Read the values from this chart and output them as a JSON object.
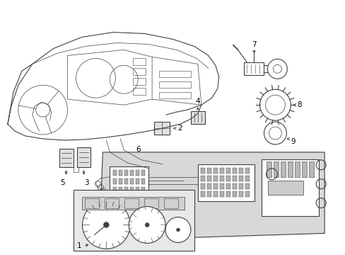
{
  "background_color": "#ffffff",
  "line_color": "#404040",
  "label_color": "#000000",
  "fig_width": 4.89,
  "fig_height": 3.6,
  "dpi": 100,
  "shade_color": "#d8d8d8",
  "white": "#ffffff",
  "light_gray": "#e8e8e8"
}
